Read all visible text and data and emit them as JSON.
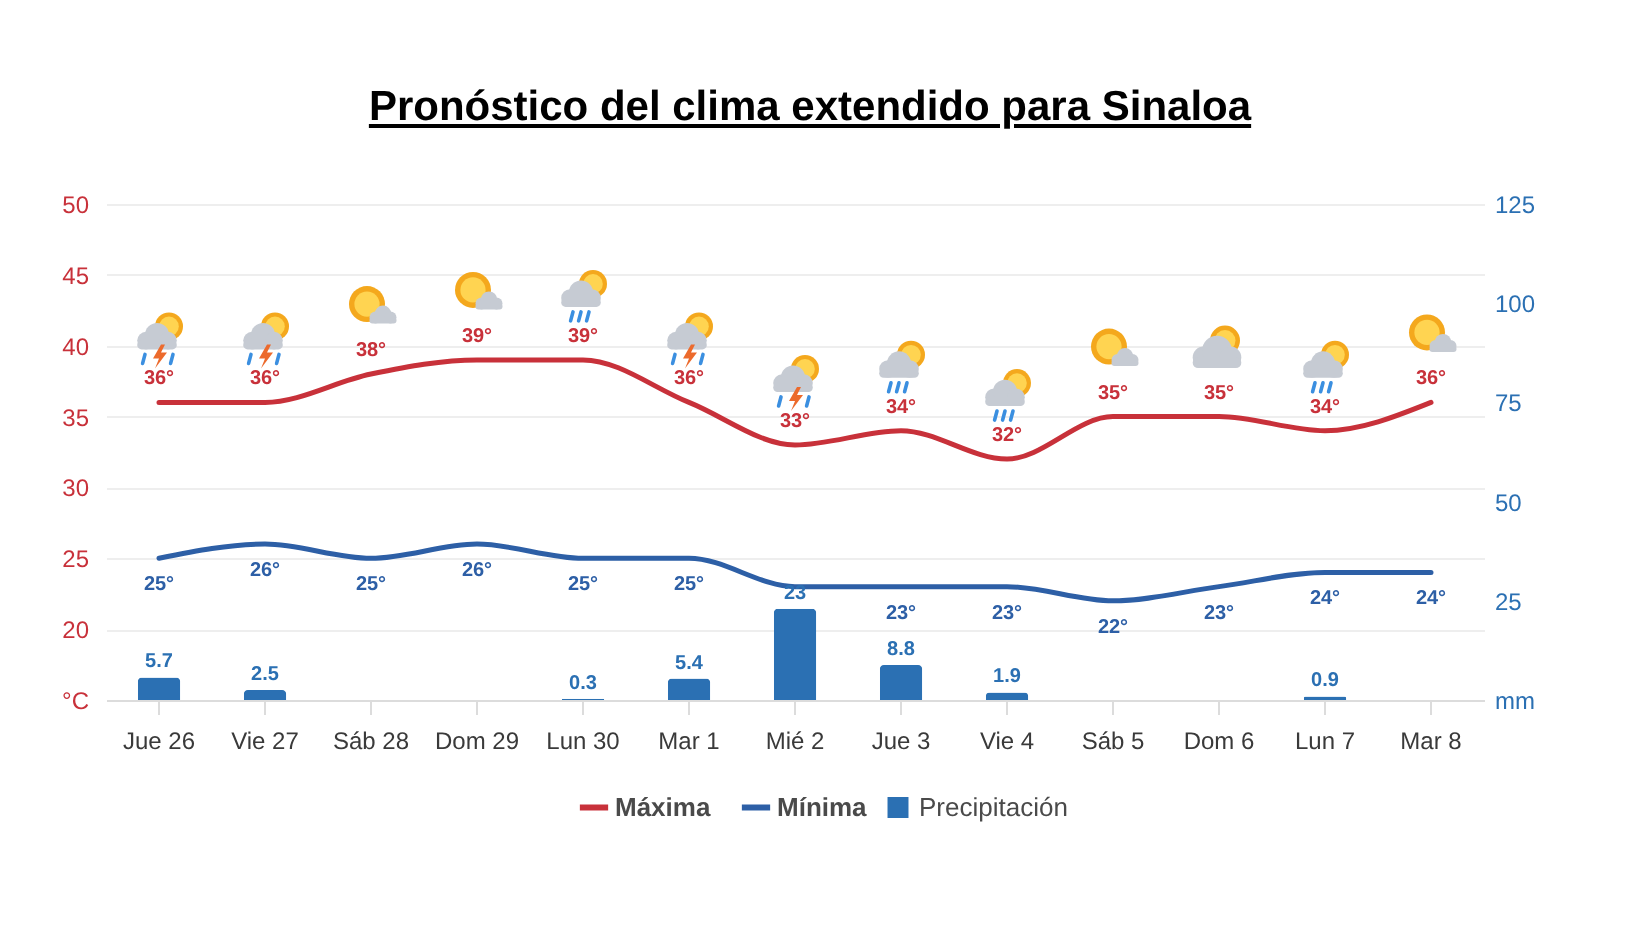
{
  "chart_data": {
    "type": "line",
    "title": "Pronóstico del clima extendido para Sinaloa",
    "categories": [
      "Jue 26",
      "Vie 27",
      "Sáb 28",
      "Dom 29",
      "Lun 30",
      "Mar 1",
      "Mié 2",
      "Jue 3",
      "Vie 4",
      "Sáb 5",
      "Dom 6",
      "Lun 7",
      "Mar 8"
    ],
    "series": [
      {
        "name": "Máxima",
        "color": "#c8313a",
        "values": [
          36,
          36,
          38,
          39,
          39,
          36,
          33,
          34,
          32,
          35,
          35,
          34,
          36
        ],
        "value_labels": [
          "36°",
          "36°",
          "38°",
          "39°",
          "39°",
          "36°",
          "33°",
          "34°",
          "32°",
          "35°",
          "35°",
          "34°",
          "36°"
        ]
      },
      {
        "name": "Mínima",
        "color": "#2d5fa6",
        "values": [
          25,
          26,
          25,
          26,
          25,
          25,
          23,
          23,
          23,
          22,
          23,
          24,
          24
        ],
        "value_labels": [
          "25°",
          "26°",
          "25°",
          "26°",
          "25°",
          "25°",
          null,
          "23°",
          "23°",
          "22°",
          "23°",
          "24°",
          "24°"
        ]
      },
      {
        "name": "Precipitación",
        "type": "bar",
        "axis": "y2",
        "color": "#2b70b3",
        "values": [
          5.7,
          2.5,
          null,
          null,
          0.3,
          5.4,
          23,
          8.8,
          1.9,
          null,
          null,
          0.9,
          null
        ],
        "value_labels": [
          "5.7",
          "2.5",
          null,
          null,
          "0.3",
          "5.4",
          "23",
          "8.8",
          "1.9",
          null,
          null,
          "0.9",
          null
        ]
      }
    ],
    "ylim": [
      15,
      50
    ],
    "yticks": [
      {
        "value": 15,
        "label": "°C"
      },
      20,
      25,
      30,
      35,
      40,
      45,
      50
    ],
    "y2lim": [
      0,
      125
    ],
    "y2ticks": [
      {
        "value": 0,
        "label": "mm"
      },
      25,
      50,
      75,
      100,
      125
    ],
    "grid": "y",
    "legend": "bottom"
  }
}
